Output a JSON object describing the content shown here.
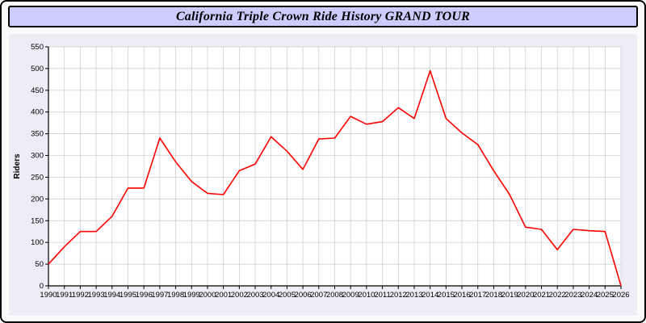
{
  "title": "California Triple Crown Ride History GRAND TOUR",
  "chart_data": {
    "type": "line",
    "title": "California Triple Crown Ride History GRAND TOUR",
    "xlabel": "",
    "ylabel": "Riders",
    "ylim": [
      0,
      550
    ],
    "ytick_step": 50,
    "grid": true,
    "legend": "none",
    "x": [
      1990,
      1991,
      1992,
      1993,
      1994,
      1995,
      1996,
      1997,
      1998,
      1999,
      2000,
      2001,
      2002,
      2003,
      2004,
      2005,
      2006,
      2007,
      2008,
      2009,
      2010,
      2011,
      2012,
      2013,
      2014,
      2015,
      2016,
      2017,
      2018,
      2019,
      2020,
      2021,
      2022,
      2023,
      2024,
      2025,
      2026
    ],
    "values": [
      50,
      90,
      125,
      125,
      160,
      225,
      225,
      340,
      285,
      240,
      213,
      210,
      265,
      280,
      343,
      310,
      268,
      338,
      340,
      390,
      372,
      378,
      410,
      385,
      495,
      385,
      352,
      325,
      265,
      210,
      135,
      130,
      83,
      130,
      127,
      125,
      0
    ]
  },
  "colors": {
    "line": "#ff0000",
    "titlebar_bg": "#ccccff",
    "panel_bg": "#ededf6",
    "plot_bg": "#ffffff",
    "grid": "#c9c9c9",
    "axis": "#000000",
    "text": "#000000"
  }
}
